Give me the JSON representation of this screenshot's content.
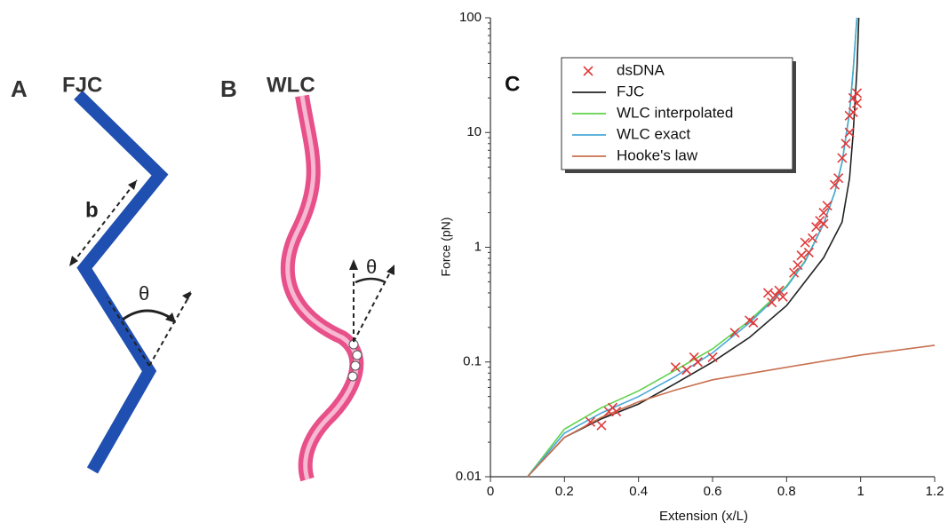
{
  "panels": {
    "a": {
      "label": "A",
      "title": "FJC",
      "segment": "b",
      "angle": "θ"
    },
    "b": {
      "label": "B",
      "title": "WLC",
      "angle": "θ"
    },
    "c": {
      "label": "C"
    }
  },
  "chart_data": {
    "type": "line",
    "xlabel": "Extension (x/L)",
    "ylabel": "Force (pN)",
    "xlim": [
      0,
      1.2
    ],
    "ylim": [
      0.01,
      100
    ],
    "xticks": [
      0,
      0.2,
      0.4,
      0.6,
      0.8,
      1,
      1.2
    ],
    "yticks": [
      0.01,
      0.1,
      1,
      10,
      100
    ],
    "yscale": "log",
    "grid": false,
    "legend": "upper left",
    "series": [
      {
        "name": "dsDNA",
        "type": "scatter",
        "color": "#e03a3a",
        "x": [
          0.27,
          0.3,
          0.32,
          0.33,
          0.34,
          0.5,
          0.53,
          0.55,
          0.56,
          0.6,
          0.66,
          0.7,
          0.71,
          0.75,
          0.76,
          0.77,
          0.78,
          0.79,
          0.82,
          0.83,
          0.84,
          0.85,
          0.86,
          0.87,
          0.88,
          0.89,
          0.9,
          0.9,
          0.91,
          0.93,
          0.94,
          0.95,
          0.96,
          0.97,
          0.97,
          0.98,
          0.98,
          0.99,
          0.99
        ],
        "values": [
          0.03,
          0.028,
          0.037,
          0.04,
          0.037,
          0.09,
          0.085,
          0.11,
          0.1,
          0.11,
          0.18,
          0.23,
          0.22,
          0.4,
          0.33,
          0.38,
          0.42,
          0.37,
          0.6,
          0.7,
          0.85,
          1.1,
          0.9,
          1.2,
          1.5,
          1.7,
          2,
          1.6,
          2.3,
          3.5,
          4,
          6,
          8,
          10,
          14,
          15,
          20,
          22,
          18
        ]
      },
      {
        "name": "FJC",
        "color": "#222222",
        "x": [
          0.1,
          0.2,
          0.3,
          0.4,
          0.5,
          0.6,
          0.7,
          0.8,
          0.9,
          0.95,
          0.97,
          0.98,
          0.99,
          0.995
        ],
        "values": [
          0.01,
          0.022,
          0.032,
          0.043,
          0.065,
          0.1,
          0.164,
          0.31,
          0.81,
          1.66,
          4,
          10,
          35,
          100
        ]
      },
      {
        "name": "WLC interpolated",
        "color": "#5fd34a",
        "x": [
          0.1,
          0.2,
          0.3,
          0.4,
          0.5,
          0.6,
          0.7,
          0.8,
          0.85,
          0.9,
          0.93,
          0.95,
          0.97,
          0.98,
          0.99
        ],
        "values": [
          0.01,
          0.026,
          0.04,
          0.056,
          0.085,
          0.13,
          0.23,
          0.46,
          0.76,
          1.6,
          3,
          5.5,
          15,
          35,
          100
        ]
      },
      {
        "name": "WLC exact",
        "color": "#4aa8d8",
        "x": [
          0.1,
          0.2,
          0.3,
          0.4,
          0.5,
          0.6,
          0.7,
          0.8,
          0.85,
          0.9,
          0.93,
          0.95,
          0.97,
          0.98,
          0.99
        ],
        "values": [
          0.01,
          0.024,
          0.036,
          0.05,
          0.075,
          0.12,
          0.22,
          0.45,
          0.75,
          1.6,
          3,
          5.5,
          15,
          35,
          100
        ]
      },
      {
        "name": "Hooke's law",
        "color": "#c87050",
        "x": [
          0.1,
          0.2,
          0.3,
          0.4,
          0.5,
          0.6,
          0.8,
          1,
          1.2
        ],
        "values": [
          0.01,
          0.022,
          0.033,
          0.045,
          0.057,
          0.07,
          0.09,
          0.115,
          0.14
        ]
      }
    ]
  }
}
